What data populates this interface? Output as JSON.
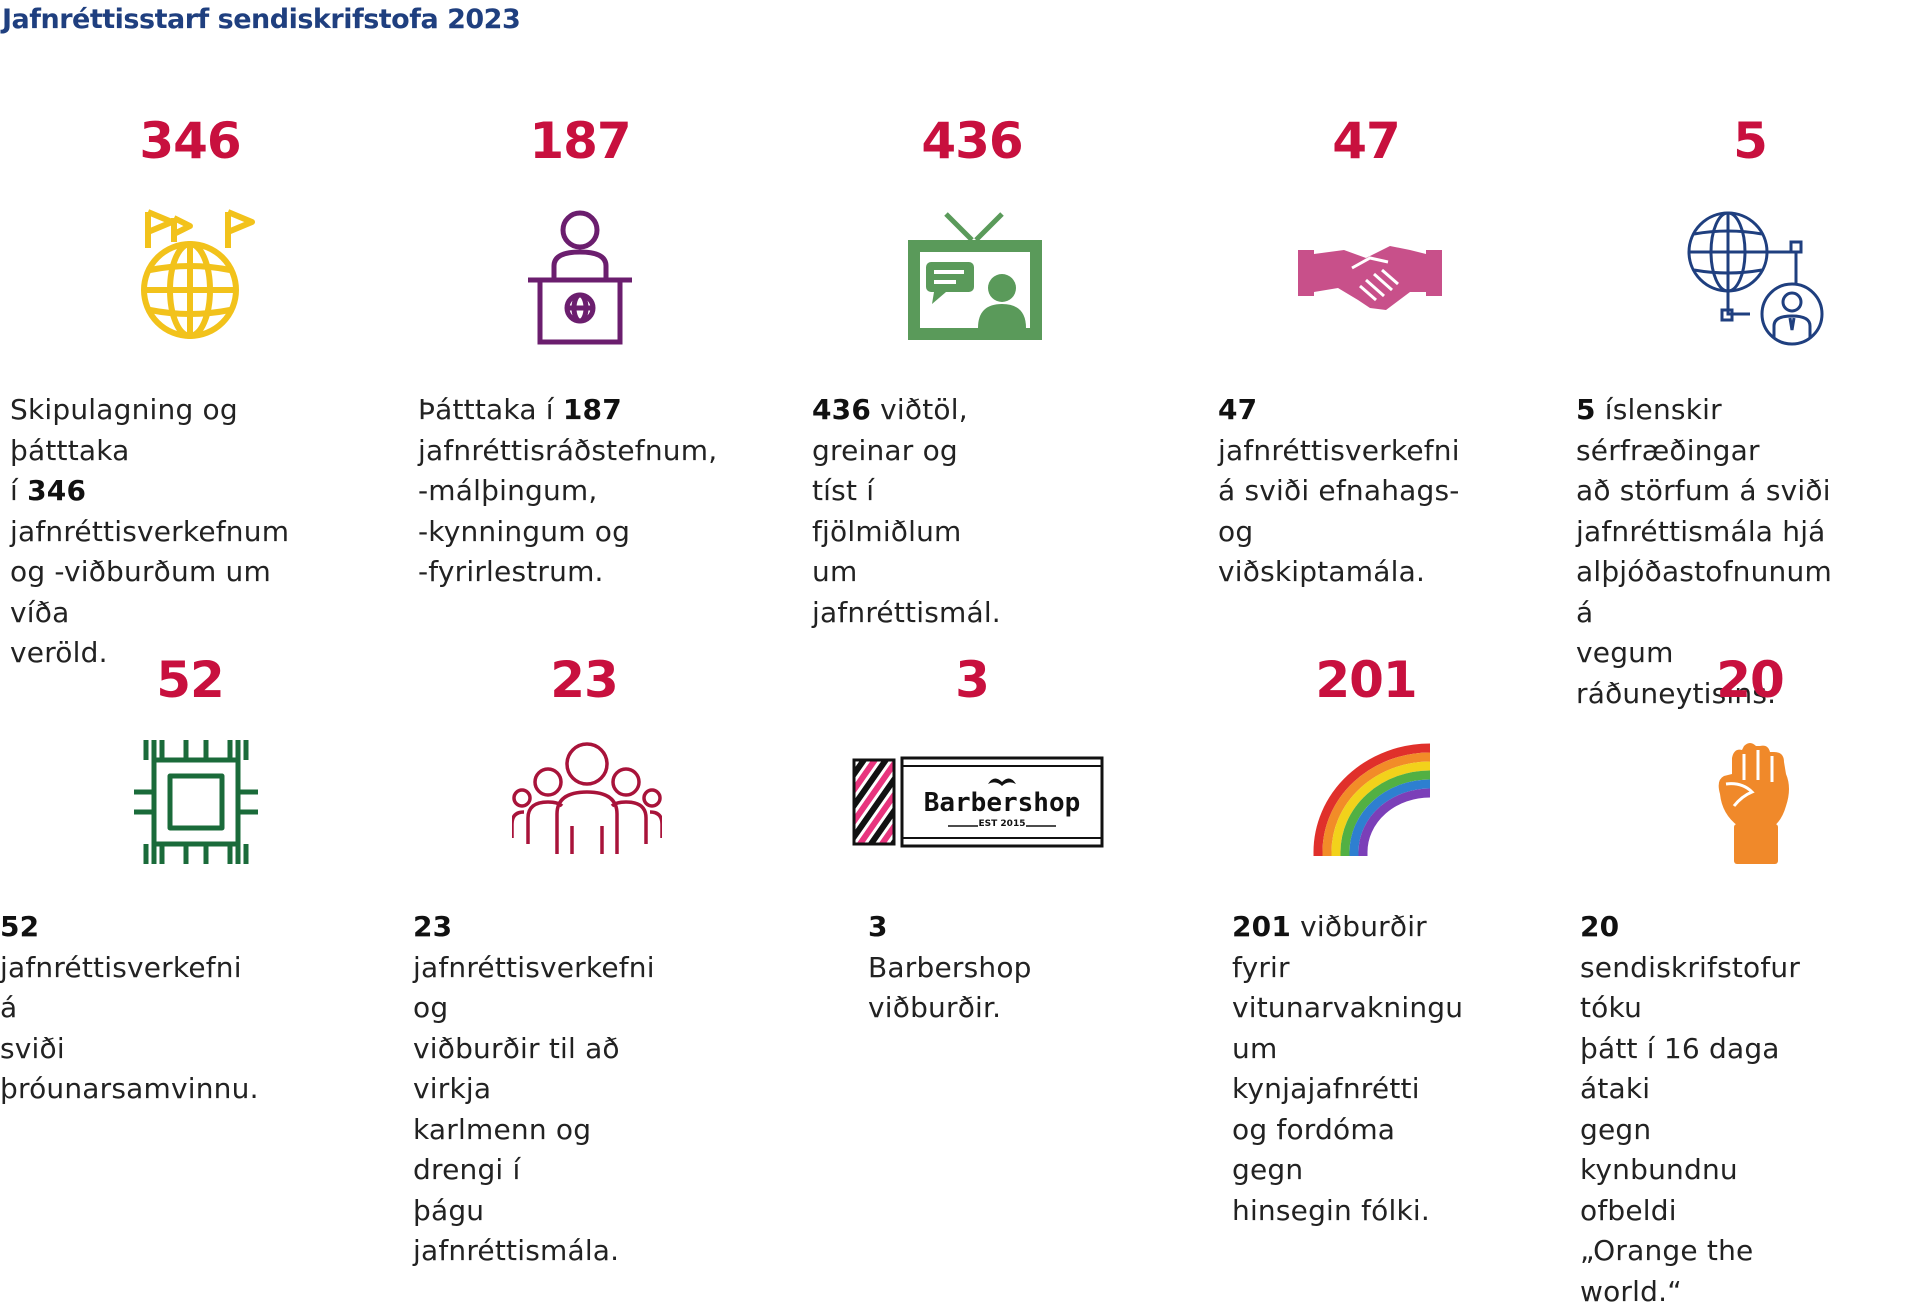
{
  "title": "Jafnréttisstarf sendiskrifstofa 2023",
  "colors": {
    "title": "#1f3f7f",
    "number": "#c8103e",
    "text": "#222222",
    "icon_globe": "#f2c21b",
    "icon_podium": "#6b1e6e",
    "icon_tv": "#5a9a5a",
    "icon_handshake": "#c8508a",
    "icon_network": "#1f3f7f",
    "icon_hands": "#1a6b3a",
    "icon_people": "#a8133a",
    "icon_fist": "#f0892a"
  },
  "stats": [
    {
      "number": "346",
      "icon": "globe-flags-icon",
      "desc_lines": [
        [
          "",
          "Skipulagning og þátttaka"
        ],
        [
          "í ",
          "346",
          " jafnréttisverkefnum"
        ],
        [
          "",
          "og -viðburðum um víða"
        ],
        [
          "",
          "veröld."
        ]
      ]
    },
    {
      "number": "187",
      "icon": "podium-speaker-icon",
      "desc_lines": [
        [
          "Þátttaka í ",
          "187"
        ],
        [
          "",
          "jafnréttisráðstefnum,"
        ],
        [
          "",
          "-málþingum,"
        ],
        [
          "",
          "-kynningum og"
        ],
        [
          "",
          "-fyrirlestrum."
        ]
      ]
    },
    {
      "number": "436",
      "icon": "tv-interview-icon",
      "desc_lines": [
        [
          "",
          "436",
          " viðtöl, greinar og"
        ],
        [
          "",
          "tíst í fjölmiðlum um"
        ],
        [
          "",
          "jafnréttismál."
        ]
      ]
    },
    {
      "number": "47",
      "icon": "handshake-icon",
      "desc_lines": [
        [
          "",
          "47",
          " jafnréttisverkefni"
        ],
        [
          "",
          "á sviði efnahags- og"
        ],
        [
          "",
          "viðskiptamála."
        ]
      ]
    },
    {
      "number": "5",
      "icon": "globe-network-person-icon",
      "desc_lines": [
        [
          "",
          "5",
          " íslenskir sérfræðingar"
        ],
        [
          "",
          "að störfum á sviði"
        ],
        [
          "",
          "jafnréttismála hjá"
        ],
        [
          "",
          "alþjóðastofnunum á"
        ],
        [
          "",
          "vegum ráðuneytisins."
        ]
      ]
    },
    {
      "number": "52",
      "icon": "linked-hands-icon",
      "desc_lines": [
        [
          "",
          "52",
          " jafnréttisverkefni á"
        ],
        [
          "",
          "sviði þróunarsamvinnu."
        ]
      ]
    },
    {
      "number": "23",
      "icon": "people-group-icon",
      "desc_lines": [
        [
          "",
          "23",
          " jafnréttisverkefni og"
        ],
        [
          "",
          "viðburðir til að virkja"
        ],
        [
          "",
          "karlmenn og drengi í"
        ],
        [
          "",
          "þágu jafnréttismála."
        ]
      ]
    },
    {
      "number": "3",
      "icon": "barbershop-logo-icon",
      "logo_text": "Barbershop",
      "logo_sub": "EST 2015",
      "desc_lines": [
        [
          "",
          "3",
          " Barbershop"
        ],
        [
          "",
          "viðburðir."
        ]
      ]
    },
    {
      "number": "201",
      "icon": "rainbow-icon",
      "desc_lines": [
        [
          "",
          "201",
          " viðburðir fyrir"
        ],
        [
          "",
          "vitunarvakningu"
        ],
        [
          "",
          "um kynjajafnrétti"
        ],
        [
          "",
          "og fordóma gegn"
        ],
        [
          "",
          "hinsegin fólki."
        ]
      ]
    },
    {
      "number": "20",
      "icon": "raised-fist-icon",
      "desc_lines": [
        [
          "",
          "20",
          " sendiskrifstofur tóku"
        ],
        [
          "",
          "þátt í 16 daga átaki"
        ],
        [
          "",
          "gegn kynbundnu"
        ],
        [
          "",
          "ofbeldi „Orange the"
        ],
        [
          "",
          "world.“"
        ]
      ]
    }
  ]
}
